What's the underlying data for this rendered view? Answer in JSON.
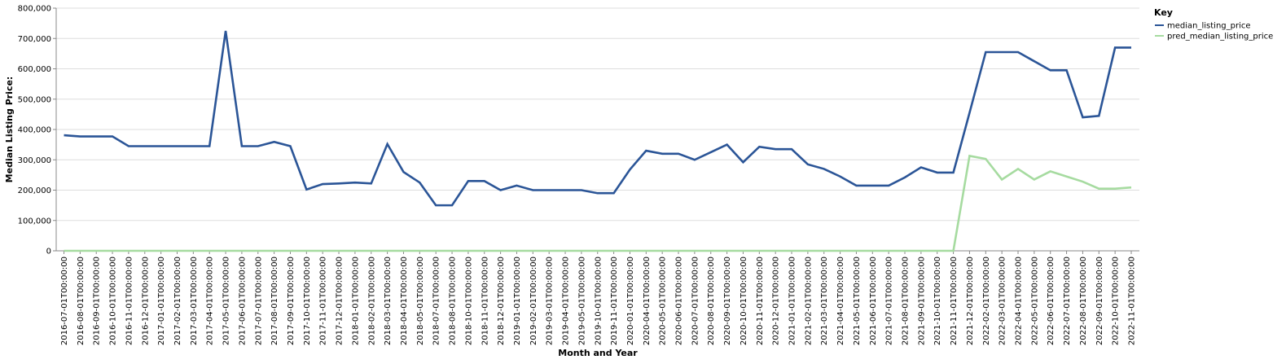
{
  "chart_data": {
    "type": "line",
    "title": "",
    "xlabel": "Month and Year",
    "ylabel": "Median Listing Price:",
    "ylim": [
      0,
      800000
    ],
    "yticks": [
      0,
      100000,
      200000,
      300000,
      400000,
      500000,
      600000,
      700000,
      800000
    ],
    "ytick_labels": [
      "0",
      "100,000",
      "200,000",
      "300,000",
      "400,000",
      "500,000",
      "600,000",
      "700,000",
      "800,000"
    ],
    "grid": true,
    "legend": {
      "title": "Key",
      "placement": "top-right"
    },
    "x": [
      "2016-07-01T00:00:00",
      "2016-08-01T00:00:00",
      "2016-09-01T00:00:00",
      "2016-10-01T00:00:00",
      "2016-11-01T00:00:00",
      "2016-12-01T00:00:00",
      "2017-01-01T00:00:00",
      "2017-02-01T00:00:00",
      "2017-03-01T00:00:00",
      "2017-04-01T00:00:00",
      "2017-05-01T00:00:00",
      "2017-06-01T00:00:00",
      "2017-07-01T00:00:00",
      "2017-08-01T00:00:00",
      "2017-09-01T00:00:00",
      "2017-10-01T00:00:00",
      "2017-11-01T00:00:00",
      "2017-12-01T00:00:00",
      "2018-01-01T00:00:00",
      "2018-02-01T00:00:00",
      "2018-03-01T00:00:00",
      "2018-04-01T00:00:00",
      "2018-05-01T00:00:00",
      "2018-07-01T00:00:00",
      "2018-08-01T00:00:00",
      "2018-10-01T00:00:00",
      "2018-11-01T00:00:00",
      "2018-12-01T00:00:00",
      "2019-01-01T00:00:00",
      "2019-02-01T00:00:00",
      "2019-03-01T00:00:00",
      "2019-04-01T00:00:00",
      "2019-05-01T00:00:00",
      "2019-10-01T00:00:00",
      "2019-11-01T00:00:00",
      "2020-01-01T00:00:00",
      "2020-04-01T00:00:00",
      "2020-05-01T00:00:00",
      "2020-06-01T00:00:00",
      "2020-07-01T00:00:00",
      "2020-08-01T00:00:00",
      "2020-09-01T00:00:00",
      "2020-10-01T00:00:00",
      "2020-11-01T00:00:00",
      "2020-12-01T00:00:00",
      "2021-01-01T00:00:00",
      "2021-02-01T00:00:00",
      "2021-03-01T00:00:00",
      "2021-04-01T00:00:00",
      "2021-05-01T00:00:00",
      "2021-06-01T00:00:00",
      "2021-07-01T00:00:00",
      "2021-08-01T00:00:00",
      "2021-09-01T00:00:00",
      "2021-10-01T00:00:00",
      "2021-11-01T00:00:00",
      "2021-12-01T00:00:00",
      "2022-02-01T00:00:00",
      "2022-03-01T00:00:00",
      "2022-04-01T00:00:00",
      "2022-05-01T00:00:00",
      "2022-06-01T00:00:00",
      "2022-07-01T00:00:00",
      "2022-08-01T00:00:00",
      "2022-09-01T00:00:00",
      "2022-10-01T00:00:00",
      "2022-11-01T00:00:00"
    ],
    "series": [
      {
        "name": "median_listing_price",
        "color": "#2b5597",
        "values": [
          381000,
          377000,
          377000,
          377000,
          345000,
          345000,
          345000,
          345000,
          345000,
          345000,
          725000,
          345000,
          345000,
          359000,
          345000,
          202000,
          220000,
          222000,
          225000,
          222000,
          352000,
          260000,
          225000,
          150000,
          150000,
          230000,
          230000,
          200000,
          215000,
          200000,
          200000,
          200000,
          200000,
          190000,
          190000,
          268000,
          330000,
          320000,
          320000,
          300000,
          325000,
          350000,
          292000,
          343000,
          335000,
          335000,
          285000,
          270000,
          245000,
          215000,
          215000,
          215000,
          242000,
          275000,
          258000,
          258000,
          455000,
          655000,
          655000,
          655000,
          625000,
          595000,
          595000,
          440000,
          445000,
          670000,
          670000
        ]
      },
      {
        "name": "pred_median_listing_price",
        "color": "#a6dba0",
        "values": [
          0,
          0,
          0,
          0,
          0,
          0,
          0,
          0,
          0,
          0,
          0,
          0,
          0,
          0,
          0,
          0,
          0,
          0,
          0,
          0,
          0,
          0,
          0,
          0,
          0,
          0,
          0,
          0,
          0,
          0,
          0,
          0,
          0,
          0,
          0,
          0,
          0,
          0,
          0,
          0,
          0,
          0,
          0,
          0,
          0,
          0,
          0,
          0,
          0,
          0,
          0,
          0,
          0,
          0,
          0,
          0,
          313000,
          303000,
          235000,
          270000,
          235000,
          262000,
          245000,
          228000,
          205000,
          205000,
          209000
        ]
      }
    ]
  }
}
